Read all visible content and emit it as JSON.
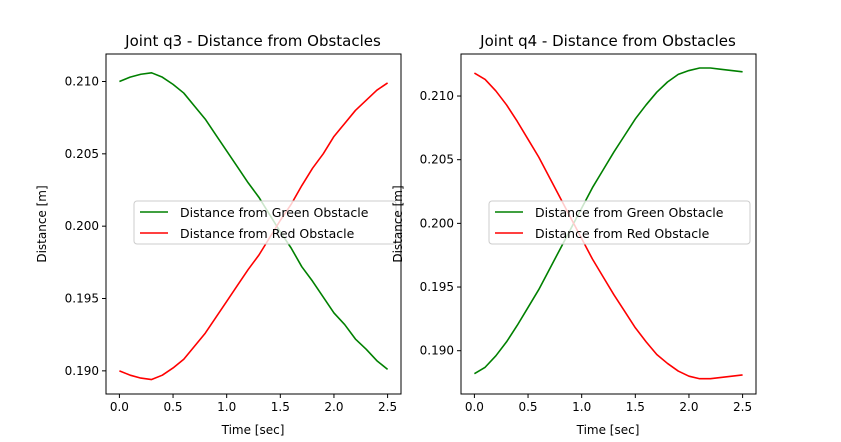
{
  "chart_data": [
    {
      "type": "line",
      "title": "Joint q3 - Distance from Obstacles",
      "xlabel": "Time [sec]",
      "ylabel": "Distance [m]",
      "xlim": [
        -0.125,
        2.625
      ],
      "ylim": [
        0.1884,
        0.2119
      ],
      "xticks": [
        0.0,
        0.5,
        1.0,
        1.5,
        2.0,
        2.5
      ],
      "xtick_labels": [
        "0.0",
        "0.5",
        "1.0",
        "1.5",
        "2.0",
        "2.5"
      ],
      "yticks": [
        0.19,
        0.195,
        0.2,
        0.205,
        0.21
      ],
      "ytick_labels": [
        "0.190",
        "0.195",
        "0.200",
        "0.205",
        "0.210"
      ],
      "grid": false,
      "legend_position": "center",
      "series": [
        {
          "name": "Distance from Green Obstacle",
          "color": "#008000",
          "x": [
            0.0,
            0.1,
            0.2,
            0.3,
            0.4,
            0.5,
            0.6,
            0.7,
            0.8,
            0.9,
            1.0,
            1.1,
            1.2,
            1.3,
            1.4,
            1.5,
            1.6,
            1.7,
            1.8,
            1.9,
            2.0,
            2.1,
            2.2,
            2.3,
            2.4,
            2.5
          ],
          "y": [
            0.21,
            0.2103,
            0.2105,
            0.2106,
            0.2103,
            0.2098,
            0.2092,
            0.2083,
            0.2074,
            0.2063,
            0.2052,
            0.2041,
            0.203,
            0.202,
            0.2008,
            0.1996,
            0.1985,
            0.1972,
            0.1962,
            0.1951,
            0.194,
            0.1932,
            0.1922,
            0.1915,
            0.1907,
            0.1901
          ]
        },
        {
          "name": "Distance from Red Obstacle",
          "color": "#ff0000",
          "x": [
            0.0,
            0.1,
            0.2,
            0.3,
            0.4,
            0.5,
            0.6,
            0.7,
            0.8,
            0.9,
            1.0,
            1.1,
            1.2,
            1.3,
            1.4,
            1.5,
            1.6,
            1.7,
            1.8,
            1.9,
            2.0,
            2.1,
            2.2,
            2.3,
            2.4,
            2.5
          ],
          "y": [
            0.19,
            0.1897,
            0.1895,
            0.1894,
            0.1897,
            0.1902,
            0.1908,
            0.1917,
            0.1926,
            0.1937,
            0.1948,
            0.1959,
            0.197,
            0.198,
            0.1992,
            0.2004,
            0.2015,
            0.2028,
            0.204,
            0.205,
            0.2062,
            0.2071,
            0.208,
            0.2087,
            0.2094,
            0.2099
          ]
        }
      ]
    },
    {
      "type": "line",
      "title": "Joint q4 - Distance from Obstacles",
      "xlabel": "Time [sec]",
      "ylabel": "Distance [m]",
      "xlim": [
        -0.125,
        2.625
      ],
      "ylim": [
        0.1866,
        0.2133
      ],
      "xticks": [
        0.0,
        0.5,
        1.0,
        1.5,
        2.0,
        2.5
      ],
      "xtick_labels": [
        "0.0",
        "0.5",
        "1.0",
        "1.5",
        "2.0",
        "2.5"
      ],
      "yticks": [
        0.19,
        0.195,
        0.2,
        0.205,
        0.21
      ],
      "ytick_labels": [
        "0.190",
        "0.195",
        "0.200",
        "0.205",
        "0.210"
      ],
      "grid": false,
      "legend_position": "center",
      "series": [
        {
          "name": "Distance from Green Obstacle",
          "color": "#008000",
          "x": [
            0.0,
            0.1,
            0.2,
            0.3,
            0.4,
            0.5,
            0.6,
            0.7,
            0.8,
            0.9,
            1.0,
            1.1,
            1.2,
            1.3,
            1.4,
            1.5,
            1.6,
            1.7,
            1.8,
            1.9,
            2.0,
            2.1,
            2.2,
            2.3,
            2.4,
            2.5
          ],
          "y": [
            0.1882,
            0.1887,
            0.1896,
            0.1907,
            0.192,
            0.1934,
            0.1948,
            0.1964,
            0.198,
            0.1996,
            0.2012,
            0.2028,
            0.2042,
            0.2056,
            0.2069,
            0.2082,
            0.2093,
            0.2103,
            0.2111,
            0.2117,
            0.212,
            0.2122,
            0.2122,
            0.2121,
            0.212,
            0.2119
          ]
        },
        {
          "name": "Distance from Red Obstacle",
          "color": "#ff0000",
          "x": [
            0.0,
            0.1,
            0.2,
            0.3,
            0.4,
            0.5,
            0.6,
            0.7,
            0.8,
            0.9,
            1.0,
            1.1,
            1.2,
            1.3,
            1.4,
            1.5,
            1.6,
            1.7,
            1.8,
            1.9,
            2.0,
            2.1,
            2.2,
            2.3,
            2.4,
            2.5
          ],
          "y": [
            0.2118,
            0.2113,
            0.2104,
            0.2093,
            0.208,
            0.2066,
            0.2052,
            0.2036,
            0.202,
            0.2004,
            0.1988,
            0.1972,
            0.1958,
            0.1944,
            0.1931,
            0.1918,
            0.1907,
            0.1897,
            0.189,
            0.1884,
            0.188,
            0.1878,
            0.1878,
            0.1879,
            0.188,
            0.1881
          ]
        }
      ]
    }
  ]
}
